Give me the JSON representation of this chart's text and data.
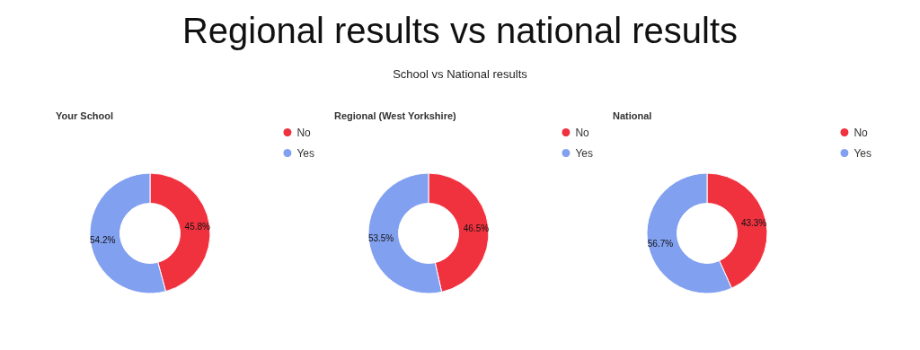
{
  "chart_data": [
    {
      "type": "other",
      "title": "Regional results vs national results",
      "subtitle": "School vs National results"
    },
    {
      "type": "donut",
      "title": "Your School",
      "categories": [
        "No",
        "Yes"
      ],
      "values": [
        45.8,
        54.2
      ],
      "value_labels": [
        "45.8%",
        "54.2%"
      ],
      "colors": [
        "#f0323f",
        "#82a0f0"
      ],
      "legend": "top right"
    },
    {
      "type": "donut",
      "title": "Regional (West Yorkshire)",
      "categories": [
        "No",
        "Yes"
      ],
      "values": [
        46.5,
        53.5
      ],
      "value_labels": [
        "46.5%",
        "53.5%"
      ],
      "colors": [
        "#f0323f",
        "#82a0f0"
      ],
      "legend": "top right"
    },
    {
      "type": "donut",
      "title": "National",
      "categories": [
        "No",
        "Yes"
      ],
      "values": [
        43.3,
        56.7
      ],
      "value_labels": [
        "43.3%",
        "56.7%"
      ],
      "colors": [
        "#f0323f",
        "#82a0f0"
      ],
      "legend": "top right"
    }
  ]
}
